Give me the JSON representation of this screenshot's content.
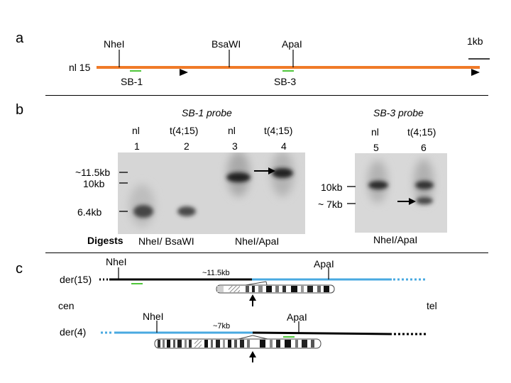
{
  "panels": {
    "a": "a",
    "b": "b",
    "c": "c"
  },
  "panel_a": {
    "track_label": "nl 15",
    "sites": [
      "NheI",
      "BsaWI",
      "ApaI"
    ],
    "probes": [
      "SB-1",
      "SB-3"
    ],
    "scale_label": "1kb",
    "colors": {
      "track": "#f07a28",
      "probe": "#4fc63a"
    }
  },
  "panel_b": {
    "probe_left": "SB-1 probe",
    "probe_right": "SB-3 probe",
    "lanes_left": [
      {
        "type": "nl",
        "num": "1"
      },
      {
        "type": "t(4;15)",
        "num": "2"
      },
      {
        "type": "nl",
        "num": "3"
      },
      {
        "type": "t(4;15)",
        "num": "4"
      }
    ],
    "lanes_right": [
      {
        "type": "nl",
        "num": "5"
      },
      {
        "type": "t(4;15)",
        "num": "6"
      }
    ],
    "markers_left": [
      "~11.5kb",
      "10kb",
      "6.4kb"
    ],
    "markers_right": [
      "10kb",
      "~ 7kb"
    ],
    "digests_label": "Digests",
    "digest_1": "NheI/ BsaWI",
    "digest_2": "NheI/ApaI",
    "digest_3": "NheI/ApaI"
  },
  "panel_c": {
    "der15": {
      "label": "der(15)",
      "site1": "NheI",
      "site2": "ApaI",
      "size": "~11.5kb"
    },
    "cen": "cen",
    "tel": "tel",
    "der4": {
      "label": "der(4)",
      "site1": "NheI",
      "site2": "ApaI",
      "size": "~7kb"
    },
    "colors": {
      "chr15": "#000000",
      "chr4": "#49a9e0",
      "probe": "#4fc63a"
    }
  }
}
